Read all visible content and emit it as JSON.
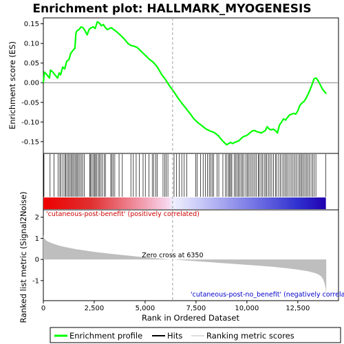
{
  "chart_data": {
    "type": "line",
    "title": "Enrichment plot: HALLMARK_MYOGENESIS",
    "colors": {
      "enrichment": "#00ff00",
      "hits": "#000000",
      "ranking_fill": "#bebebe",
      "zero_line": "#a0a0a0",
      "pos_label": "#cc0000",
      "neg_label": "#0000cc"
    },
    "top_panel": {
      "ylabel": "Enrichment score (ES)",
      "ylim": [
        -0.18,
        0.165
      ],
      "yticks": [
        -0.15,
        -0.1,
        -0.05,
        0.0,
        0.05,
        0.1,
        0.15
      ],
      "ytick_labels": [
        "-0.15",
        "-0.10",
        "-0.05",
        "0.00",
        "0.05",
        "0.10",
        "0.15"
      ],
      "series": [
        {
          "name": "Enrichment profile",
          "x": [
            0,
            50,
            150,
            300,
            350,
            450,
            600,
            700,
            780,
            850,
            950,
            1050,
            1150,
            1250,
            1350,
            1450,
            1550,
            1600,
            1650,
            1750,
            1850,
            1950,
            2050,
            2150,
            2250,
            2350,
            2450,
            2550,
            2650,
            2750,
            2850,
            2950,
            3050,
            3150,
            3250,
            3350,
            3450,
            3550,
            3700,
            3850,
            4000,
            4150,
            4300,
            4450,
            4600,
            4750,
            4900,
            5050,
            5200,
            5400,
            5600,
            5800,
            6000,
            6200,
            6400,
            6600,
            6800,
            7000,
            7200,
            7400,
            7600,
            7800,
            8000,
            8200,
            8400,
            8600,
            8800,
            9000,
            9100,
            9200,
            9300,
            9400,
            9500,
            9600,
            9700,
            9800,
            9900,
            10000,
            10100,
            10200,
            10300,
            10400,
            10500,
            10600,
            10700,
            10800,
            10900,
            11000,
            11100,
            11200,
            11300,
            11400,
            11500,
            11600,
            11700,
            11800,
            11900,
            12000,
            12100,
            12200,
            12300,
            12400,
            12500,
            12600,
            12700,
            12800,
            12900,
            13000,
            13100,
            13200,
            13300,
            13400,
            13500,
            13600,
            13700,
            13800,
            13850,
            13900
          ],
          "y": [
            0.0,
            0.027,
            0.022,
            0.012,
            0.032,
            0.028,
            0.018,
            0.012,
            0.025,
            0.02,
            0.04,
            0.035,
            0.055,
            0.058,
            0.075,
            0.082,
            0.088,
            0.125,
            0.132,
            0.135,
            0.142,
            0.14,
            0.132,
            0.122,
            0.136,
            0.14,
            0.142,
            0.138,
            0.155,
            0.152,
            0.145,
            0.148,
            0.14,
            0.135,
            0.138,
            0.14,
            0.135,
            0.132,
            0.125,
            0.118,
            0.11,
            0.1,
            0.095,
            0.093,
            0.09,
            0.083,
            0.075,
            0.068,
            0.06,
            0.052,
            0.04,
            0.022,
            0.008,
            -0.008,
            -0.022,
            -0.038,
            -0.052,
            -0.065,
            -0.078,
            -0.092,
            -0.102,
            -0.11,
            -0.118,
            -0.123,
            -0.127,
            -0.135,
            -0.148,
            -0.158,
            -0.155,
            -0.152,
            -0.155,
            -0.152,
            -0.15,
            -0.148,
            -0.143,
            -0.138,
            -0.136,
            -0.134,
            -0.13,
            -0.125,
            -0.122,
            -0.122,
            -0.125,
            -0.126,
            -0.128,
            -0.125,
            -0.122,
            -0.112,
            -0.118,
            -0.12,
            -0.118,
            -0.122,
            -0.128,
            -0.108,
            -0.1,
            -0.092,
            -0.095,
            -0.088,
            -0.082,
            -0.08,
            -0.078,
            -0.08,
            -0.072,
            -0.058,
            -0.052,
            -0.048,
            -0.04,
            -0.03,
            -0.018,
            -0.005,
            0.01,
            0.012,
            0.005,
            -0.005,
            -0.015,
            -0.022,
            -0.025,
            -0.028
          ]
        }
      ]
    },
    "hits": [
      30,
      330,
      520,
      720,
      810,
      870,
      960,
      1050,
      1100,
      1170,
      1230,
      1300,
      1360,
      1420,
      1480,
      1550,
      1600,
      1660,
      1720,
      1790,
      1860,
      1930,
      2010,
      2280,
      2320,
      2380,
      2450,
      2520,
      2560,
      2620,
      2700,
      2760,
      2830,
      2900,
      2990,
      3050,
      3310,
      3370,
      3430,
      3510,
      3720,
      3880,
      4300,
      4420,
      4560,
      4720,
      4900,
      5010,
      5190,
      5350,
      5420,
      5530,
      5600,
      5880,
      5960,
      6040,
      6120,
      6420,
      6540,
      6680,
      6800,
      6920,
      7050,
      7480,
      7560,
      7720,
      7850,
      7960,
      8060,
      8150,
      8220,
      8300,
      8360,
      8530,
      8620,
      8820,
      8950,
      9020,
      9100,
      9150,
      9210,
      9260,
      9380,
      9450,
      9510,
      9580,
      9640,
      9720,
      9780,
      9860,
      9950,
      10020,
      10080,
      10160,
      10240,
      10310,
      10390,
      10470,
      10560,
      10610,
      10690,
      10760,
      10850,
      10920,
      10980,
      11060,
      11140,
      11220,
      11310,
      11400,
      11460,
      11560,
      11640,
      11730,
      11820,
      11890,
      11960,
      12030,
      12120,
      12200,
      12270,
      12350,
      12430,
      12510,
      12590,
      12650,
      12710,
      12780,
      12850,
      12920,
      12990,
      13070,
      13150,
      13230,
      13310,
      13390,
      13880
    ],
    "bottom_panel": {
      "ylabel": "Ranked list metric (Signal2Noise)",
      "xlabel": "Rank in Ordered Dataset",
      "ylim": [
        -1.95,
        2.35
      ],
      "yticks": [
        -1,
        0,
        1,
        2
      ],
      "ytick_labels": [
        "-1",
        "0",
        "1",
        "2"
      ],
      "metric_x": [
        0,
        20,
        60,
        120,
        200,
        350,
        500,
        800,
        1200,
        1600,
        2000,
        2500,
        3000,
        3500,
        4000,
        4500,
        5000,
        5500,
        6000,
        6350,
        6800,
        7500,
        8500,
        9500,
        10500,
        11300,
        12000,
        12500,
        13000,
        13300,
        13500,
        13650,
        13750,
        13820,
        13870,
        13900
      ],
      "metric_values": [
        1.2,
        1.05,
        0.98,
        0.92,
        0.86,
        0.8,
        0.74,
        0.65,
        0.56,
        0.49,
        0.43,
        0.36,
        0.3,
        0.25,
        0.2,
        0.15,
        0.1,
        0.06,
        0.02,
        0.0,
        -0.03,
        -0.08,
        -0.15,
        -0.22,
        -0.29,
        -0.35,
        -0.42,
        -0.48,
        -0.56,
        -0.63,
        -0.7,
        -0.8,
        -0.95,
        -1.15,
        -1.4,
        -1.75
      ],
      "zero_cross_label": "Zero cross at 6350",
      "zero_cross": 6350,
      "pos_label": "'cutaneous-post-benefit' (positively correlated)",
      "neg_label": "'cutaneous-post-no_benefit' (negatively correlated)"
    },
    "xlim": [
      0,
      14500
    ],
    "xticks": [
      0,
      2500,
      5000,
      7500,
      10000,
      12500
    ],
    "xtick_labels": [
      "0",
      "2,500",
      "5,000",
      "7,500",
      "10,000",
      "12,500"
    ],
    "legend": [
      "Enrichment profile",
      "Hits",
      "Ranking metric scores"
    ]
  }
}
